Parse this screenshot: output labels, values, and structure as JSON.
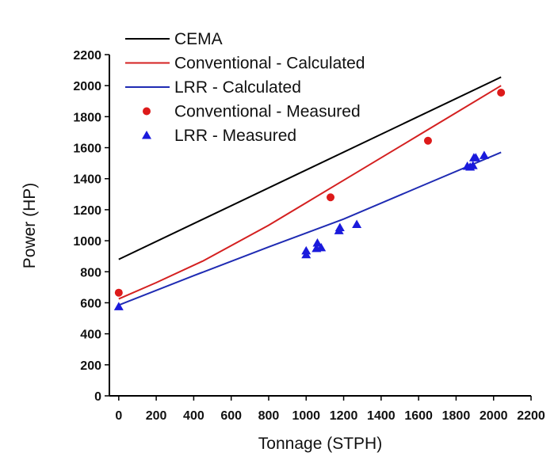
{
  "chart_data": {
    "type": "line",
    "title": "",
    "xlabel": "Tonnage (STPH)",
    "ylabel": "Power (HP)",
    "xlim": [
      -50,
      2200
    ],
    "ylim": [
      0,
      2200
    ],
    "xticks": [
      0,
      200,
      400,
      600,
      800,
      1000,
      1200,
      1400,
      1600,
      1800,
      2000,
      2200
    ],
    "yticks": [
      0,
      200,
      400,
      600,
      800,
      1000,
      1200,
      1400,
      1600,
      1800,
      2000,
      2200
    ],
    "grid": false,
    "legend_position": "top-left",
    "series": [
      {
        "name": "CEMA",
        "kind": "line",
        "color": "#000000",
        "x": [
          0,
          2040
        ],
        "y": [
          880,
          2055
        ]
      },
      {
        "name": "Conventional - Calculated",
        "kind": "line",
        "color": "#d42020",
        "x": [
          0,
          200,
          450,
          800,
          1200,
          1600,
          2040
        ],
        "y": [
          625,
          730,
          870,
          1100,
          1390,
          1680,
          2000
        ]
      },
      {
        "name": "LRR - Calculated",
        "kind": "line",
        "color": "#1f2bb3",
        "x": [
          0,
          400,
          800,
          1200,
          1600,
          2040
        ],
        "y": [
          585,
          775,
          960,
          1140,
          1345,
          1570
        ]
      },
      {
        "name": "Conventional - Measured",
        "kind": "scatter",
        "marker": "circle",
        "color": "#dd1a1a",
        "x": [
          0,
          1130,
          1650,
          2040
        ],
        "y": [
          665,
          1280,
          1645,
          1955
        ]
      },
      {
        "name": "LRR - Measured",
        "kind": "scatter",
        "marker": "triangle",
        "color": "#1a1adc",
        "x": [
          0,
          1000,
          1000,
          1055,
          1060,
          1080,
          1175,
          1180,
          1270,
          1860,
          1875,
          1890,
          1895,
          1905,
          1950
        ],
        "y": [
          575,
          910,
          935,
          950,
          985,
          955,
          1065,
          1085,
          1105,
          1480,
          1475,
          1485,
          1535,
          1535,
          1550
        ]
      }
    ]
  }
}
